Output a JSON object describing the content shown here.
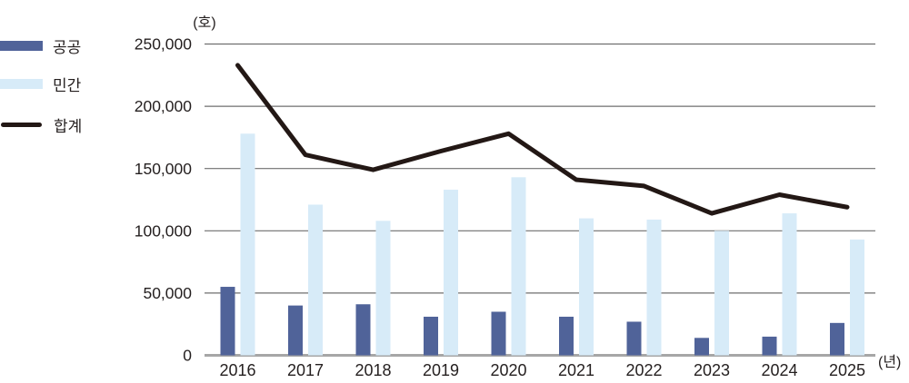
{
  "chart_data": {
    "type": "bar+line combo",
    "title": "",
    "categories": [
      "2016",
      "2017",
      "2018",
      "2019",
      "2020",
      "2021",
      "2022",
      "2023",
      "2024",
      "2025"
    ],
    "series": [
      {
        "name": "공공",
        "type": "bar",
        "color": "#506399",
        "values": [
          55000,
          40000,
          41000,
          31000,
          35000,
          31000,
          27000,
          14000,
          15000,
          26000
        ]
      },
      {
        "name": "민간",
        "type": "bar",
        "color": "#d7ebf8",
        "values": [
          178000,
          121000,
          108000,
          133000,
          143000,
          110000,
          109000,
          100000,
          114000,
          93000
        ]
      },
      {
        "name": "합계",
        "type": "line",
        "color": "#231815",
        "values": [
          233000,
          161000,
          149000,
          164000,
          178000,
          141000,
          136000,
          114000,
          129000,
          119000
        ]
      }
    ],
    "y_axis": {
      "unit": "(호)",
      "min": 0,
      "max": 250000,
      "tick_step": 50000,
      "tick_values": [
        0,
        50000,
        100000,
        150000,
        200000,
        250000
      ],
      "tick_labels": [
        "0",
        "50,000",
        "100,000",
        "150,000",
        "200,000",
        "250,000"
      ]
    },
    "x_axis": {
      "unit": "(년)"
    },
    "legend_position": "top-left",
    "grid": true
  },
  "colors": {
    "background": "#ffffff",
    "gridline": "#6f6f6f",
    "baseline": "#a6a6a6",
    "text": "#241f1f"
  }
}
